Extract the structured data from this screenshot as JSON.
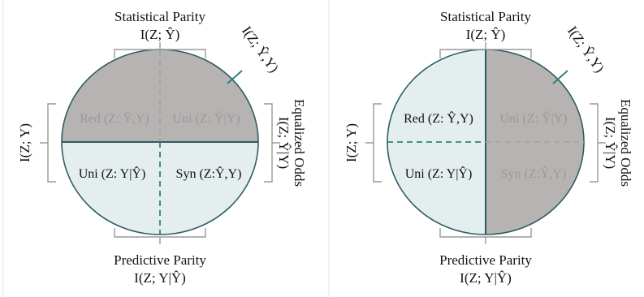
{
  "colors": {
    "gray_region": "#b6b3b2",
    "light_region": "#e5eeef",
    "teal_line": "#2f8079",
    "outline": "#2f5f63",
    "bracket": "#9a9a9a",
    "faded_text": "#9a9a9a"
  },
  "left_panel": {
    "top_title": "Statistical Parity",
    "top_formula": "I(Z; Ŷ)",
    "diag_label": "I(Z; Ŷ,Y)",
    "left_label": "I(Z; Y)",
    "right_label_line1": "Equalized Odds",
    "right_label_line2": "I(Z; Ŷ|Y)",
    "bottom_title": "Predictive Parity",
    "bottom_formula": "I(Z; Y|Ŷ)",
    "q_top_left": "Red (Z: Ŷ,Y)",
    "q_top_right": "Uni (Z: Ŷ|Y)",
    "q_bottom_left": "Uni (Z: Y|Ŷ)",
    "q_bottom_right": "Syn (Z:Ŷ,Y)"
  },
  "right_panel": {
    "top_title": "Statistical Parity",
    "top_formula": "I(Z; Ŷ)",
    "diag_label": "I(Z; Ŷ,Y)",
    "left_label": "I(Z; Y)",
    "right_label_line1": "Equalized Odds",
    "right_label_line2": "I(Z; Ŷ|Y)",
    "bottom_title": "Predictive Parity",
    "bottom_formula": "I(Z; Y|Ŷ)",
    "q_top_left": "Red (Z: Ŷ,Y)",
    "q_top_right": "Uni (Z: Ŷ|Y)",
    "q_bottom_left": "Uni (Z: Y|Ŷ)",
    "q_bottom_right": "Syn (Z:Ŷ,Y)"
  }
}
